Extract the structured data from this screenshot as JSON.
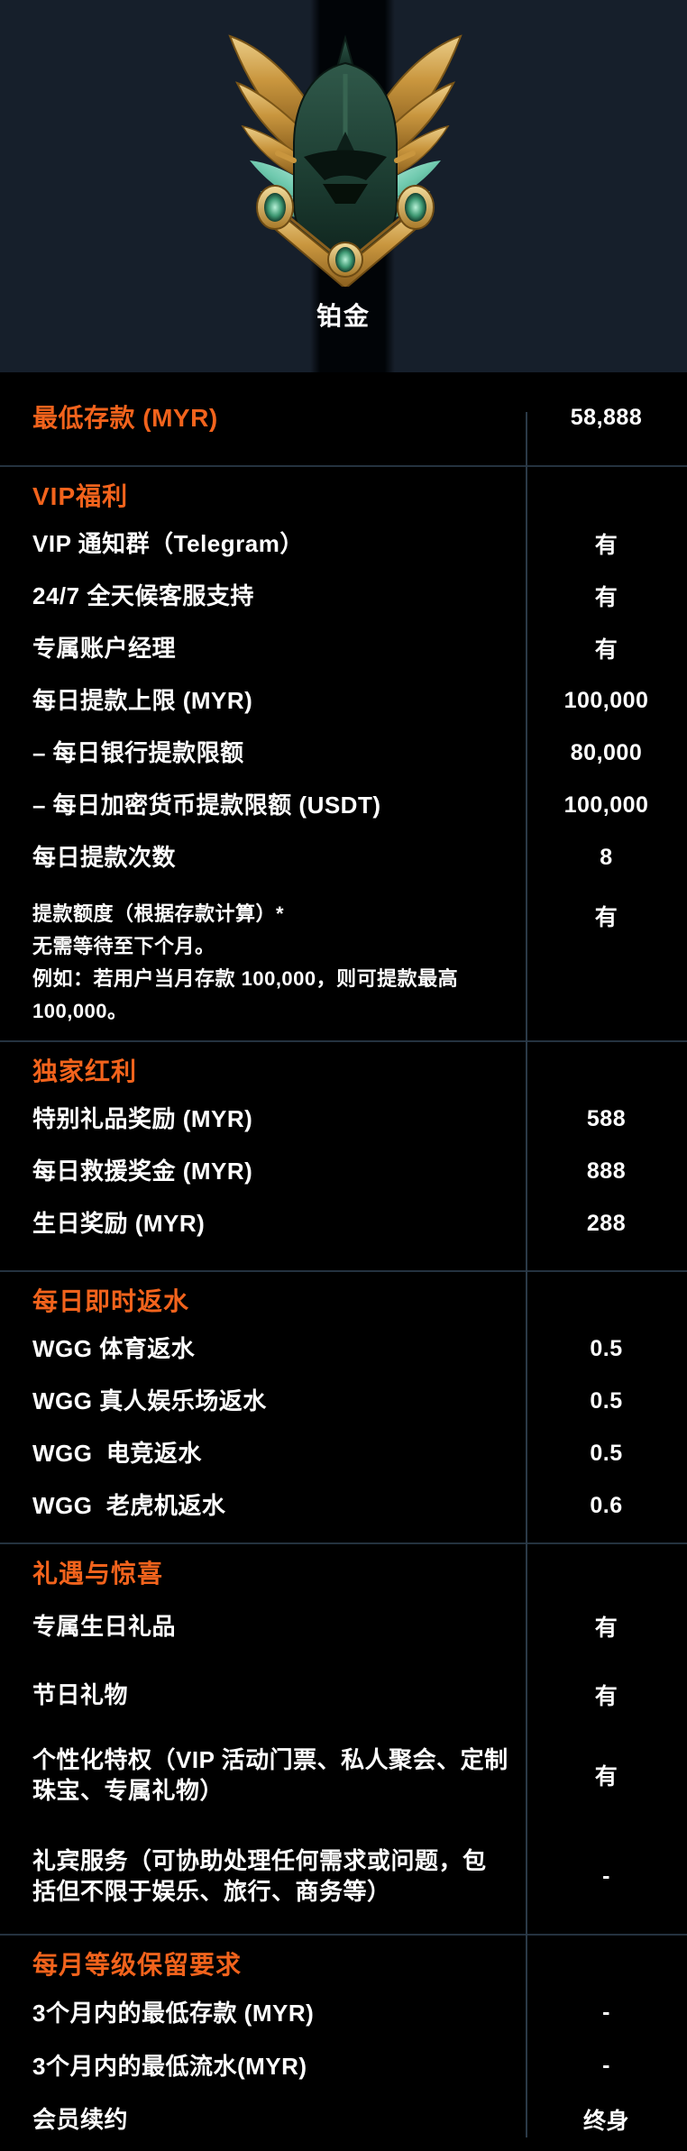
{
  "tier": {
    "name": "铂金",
    "badge_icon": "winged-green-knight-helmet-emblem"
  },
  "colors": {
    "accent_orange": "#f2631c",
    "header_bg": "#161f2b",
    "table_bg": "#000000",
    "divider": "#24323f",
    "text": "#ffffff"
  },
  "table": {
    "sections": [
      {
        "rows": [
          {
            "label": "最低存款 (MYR)",
            "value": "58,888",
            "accent": true
          }
        ]
      },
      {
        "title": "VIP福利",
        "rows": [
          {
            "label": "VIP 通知群（Telegram）",
            "value": "有"
          },
          {
            "label": "24/7 全天候客服支持",
            "value": "有"
          },
          {
            "label": "专属账户经理",
            "value": "有"
          },
          {
            "label": "每日提款上限 (MYR)",
            "value": "100,000"
          },
          {
            "label": "– 每日银行提款限额",
            "value": "80,000"
          },
          {
            "label": "– 每日加密货币提款限额 (USDT)",
            "value": "100,000"
          },
          {
            "label": "每日提款次数",
            "value": "8"
          },
          {
            "label": "提款额度（根据存款计算）*",
            "note_lines": [
              "无需等待至下个月。",
              "例如：若用户当月存款 100,000，则可提款最高 100,000。"
            ],
            "value": "有"
          }
        ]
      },
      {
        "title": "独家红利",
        "rows": [
          {
            "label": "特别礼品奖励 (MYR)",
            "value": "588"
          },
          {
            "label": "每日救援奖金 (MYR)",
            "value": "888"
          },
          {
            "label": "生日奖励 (MYR)",
            "value": "288"
          }
        ]
      },
      {
        "title": "每日即时返水",
        "rows": [
          {
            "label": "WGG 体育返水",
            "value": "0.5"
          },
          {
            "label": "WGG 真人娱乐场返水",
            "value": "0.5"
          },
          {
            "label": "WGG  电竞返水",
            "value": "0.5"
          },
          {
            "label": "WGG  老虎机返水",
            "value": "0.6"
          }
        ]
      },
      {
        "title": "礼遇与惊喜",
        "rows": [
          {
            "label": "专属生日礼品",
            "value": "有"
          },
          {
            "label": "节日礼物",
            "value": "有"
          },
          {
            "label": "个性化特权（VIP 活动门票、私人聚会、定制珠宝、专属礼物）",
            "value": "有"
          },
          {
            "label": "礼宾服务（可协助处理任何需求或问题，包括但不限于娱乐、旅行、商务等）",
            "value": "-"
          }
        ]
      },
      {
        "title": "每月等级保留要求",
        "rows": [
          {
            "label": "3个月内的最低存款 (MYR)",
            "value": "-"
          },
          {
            "label": "3个月内的最低流水(MYR)",
            "value": "-"
          },
          {
            "label": "会员续约",
            "value": "终身"
          }
        ]
      }
    ]
  }
}
